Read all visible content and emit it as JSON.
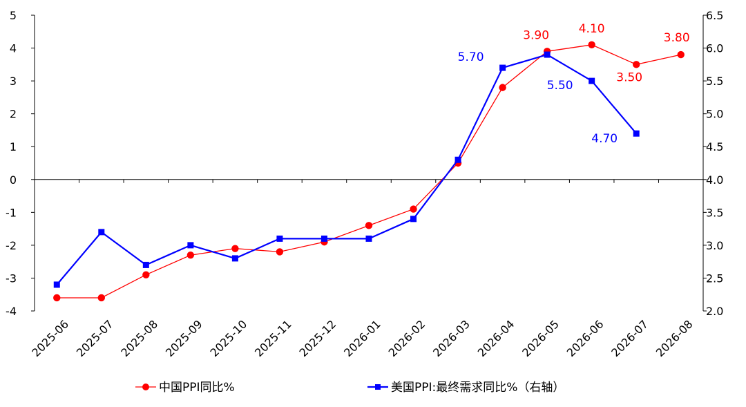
{
  "chart_data": {
    "type": "line",
    "title": "",
    "categories": [
      "2025-06",
      "2025-07",
      "2025-08",
      "2025-09",
      "2025-10",
      "2025-11",
      "2025-12",
      "2026-01",
      "2026-02",
      "2026-03",
      "2026-04",
      "2026-05",
      "2026-06",
      "2026-07",
      "2026-08"
    ],
    "left_axis": {
      "min": -4,
      "max": 5,
      "ticks": [
        "-4",
        "-3",
        "-2",
        "-1",
        "0",
        "1",
        "2",
        "3",
        "4",
        "5"
      ]
    },
    "right_axis": {
      "min": 2.0,
      "max": 6.5,
      "ticks": [
        "2.0",
        "2.5",
        "3.0",
        "3.5",
        "4.0",
        "4.5",
        "5.0",
        "5.5",
        "6.0",
        "6.5"
      ]
    },
    "grid": false,
    "legend_position": "bottom",
    "series": [
      {
        "name": "中国PPI同比%",
        "axis": "left",
        "color": "#ff0000",
        "marker": "circle",
        "values": [
          -3.6,
          -3.6,
          -2.9,
          -2.3,
          -2.1,
          -2.2,
          -1.9,
          -1.4,
          -0.9,
          0.5,
          2.8,
          3.9,
          4.1,
          3.5,
          3.8
        ],
        "data_labels": [
          {
            "index": 11,
            "text": "3.90"
          },
          {
            "index": 12,
            "text": "4.10"
          },
          {
            "index": 13,
            "text": "3.50"
          },
          {
            "index": 14,
            "text": "3.80"
          }
        ]
      },
      {
        "name": "美国PPI:最终需求同比%（右轴）",
        "axis": "right",
        "color": "#0000ff",
        "marker": "square",
        "values": [
          2.4,
          3.2,
          2.7,
          3.0,
          2.8,
          3.1,
          3.1,
          3.1,
          3.4,
          4.3,
          5.7,
          5.9,
          5.5,
          4.7,
          null
        ],
        "data_labels": [
          {
            "index": 10,
            "text": "5.70"
          },
          {
            "index": 12,
            "text": "5.50"
          },
          {
            "index": 13,
            "text": "4.70"
          }
        ]
      }
    ]
  }
}
